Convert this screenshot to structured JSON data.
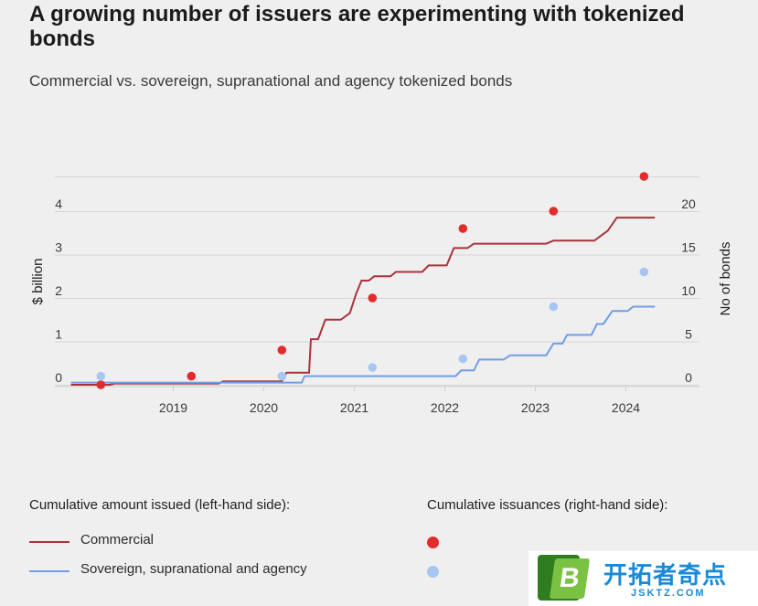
{
  "header": {
    "title": "A growing number of issuers are experimenting with tokenized bonds",
    "subtitle": "Commercial vs. sovereign, supranational and agency tokenized bonds"
  },
  "chart_data": {
    "type": "line",
    "left_axis": {
      "label": "$ billion",
      "ticks": [
        0,
        1,
        2,
        3,
        4
      ],
      "range": [
        -0.2,
        4.8
      ]
    },
    "right_axis": {
      "label": "No of bonds",
      "ticks": [
        0,
        5,
        10,
        15,
        20
      ],
      "range": [
        -1,
        24
      ]
    },
    "x_axis": {
      "ticks": [
        "2019",
        "2020",
        "2021",
        "2022",
        "2023",
        "2024"
      ],
      "range": [
        2018.17,
        2024.85
      ]
    },
    "series": [
      {
        "name": "Commercial",
        "axis": "left",
        "style": "step-line",
        "color": "#a8343c",
        "points": [
          [
            2018.17,
            0.0
          ],
          [
            2018.6,
            0.0
          ],
          [
            2018.65,
            0.03
          ],
          [
            2019.8,
            0.03
          ],
          [
            2019.85,
            0.08
          ],
          [
            2020.5,
            0.08
          ],
          [
            2020.55,
            0.28
          ],
          [
            2020.8,
            0.28
          ],
          [
            2020.82,
            1.05
          ],
          [
            2020.9,
            1.05
          ],
          [
            2020.98,
            1.5
          ],
          [
            2021.15,
            1.5
          ],
          [
            2021.25,
            1.65
          ],
          [
            2021.32,
            2.1
          ],
          [
            2021.38,
            2.4
          ],
          [
            2021.46,
            2.4
          ],
          [
            2021.52,
            2.5
          ],
          [
            2021.7,
            2.5
          ],
          [
            2021.76,
            2.6
          ],
          [
            2022.05,
            2.6
          ],
          [
            2022.12,
            2.75
          ],
          [
            2022.32,
            2.75
          ],
          [
            2022.4,
            3.15
          ],
          [
            2022.55,
            3.15
          ],
          [
            2022.62,
            3.25
          ],
          [
            2023.42,
            3.25
          ],
          [
            2023.5,
            3.32
          ],
          [
            2023.95,
            3.32
          ],
          [
            2024.1,
            3.55
          ],
          [
            2024.2,
            3.85
          ],
          [
            2024.62,
            3.85
          ]
        ]
      },
      {
        "name": "Sovereign, supranational and agency",
        "axis": "left",
        "style": "step-line",
        "color": "#6f9ee6",
        "points": [
          [
            2018.17,
            0.05
          ],
          [
            2020.72,
            0.05
          ],
          [
            2020.75,
            0.2
          ],
          [
            2022.42,
            0.2
          ],
          [
            2022.48,
            0.33
          ],
          [
            2022.62,
            0.33
          ],
          [
            2022.68,
            0.58
          ],
          [
            2022.95,
            0.58
          ],
          [
            2023.02,
            0.68
          ],
          [
            2023.42,
            0.68
          ],
          [
            2023.5,
            0.95
          ],
          [
            2023.6,
            0.95
          ],
          [
            2023.65,
            1.15
          ],
          [
            2023.92,
            1.15
          ],
          [
            2023.98,
            1.4
          ],
          [
            2024.05,
            1.4
          ],
          [
            2024.15,
            1.7
          ],
          [
            2024.32,
            1.7
          ],
          [
            2024.38,
            1.8
          ],
          [
            2024.62,
            1.8
          ]
        ]
      },
      {
        "name": "Commercial",
        "axis": "right",
        "style": "dots",
        "color": "#e32b2b",
        "x": [
          2018.5,
          2019.5,
          2020.5,
          2021.5,
          2022.5,
          2023.5,
          2024.5
        ],
        "values": [
          0,
          1,
          4,
          10,
          18,
          20,
          24
        ]
      },
      {
        "name": "Sovereign, supranational and agency",
        "axis": "right",
        "style": "dots",
        "color": "#a8c6f2",
        "x": [
          2018.5,
          2020.5,
          2021.5,
          2022.5,
          2023.5,
          2024.5
        ],
        "values": [
          1,
          1,
          2,
          3,
          9,
          13
        ]
      }
    ],
    "grid": true
  },
  "legend": {
    "left_heading": "Cumulative amount issued (left-hand side):",
    "right_heading": "Cumulative issuances (right-hand side):",
    "items": [
      {
        "label": "Commercial",
        "line_color": "#a8343c",
        "dot_color": "#e32b2b"
      },
      {
        "label": "Sovereign, supranational and agency",
        "line_color": "#6f9ee6",
        "dot_color": "#a8c6f2"
      }
    ]
  },
  "watermark": {
    "logo_letter": "B",
    "text": "开拓者奇点",
    "url": "JSKTZ.COM"
  }
}
